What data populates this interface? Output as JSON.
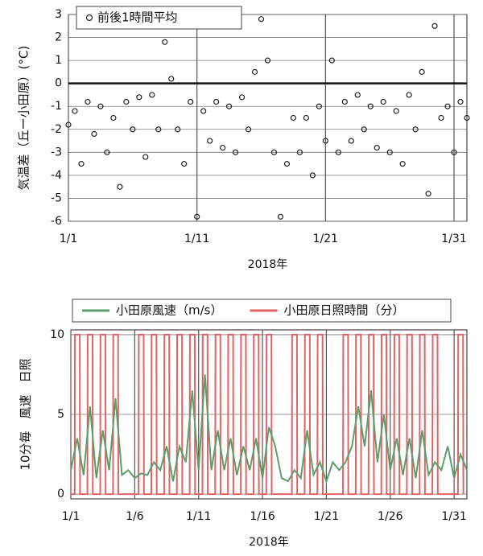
{
  "chart_data": [
    {
      "type": "scatter",
      "ylabel": "気温差（丘ー小田原）(°C)",
      "xlabel": "2018年",
      "xlim": [
        1,
        32
      ],
      "ylim": [
        -6,
        3
      ],
      "xticks": [
        {
          "value": 1,
          "label": "1/1"
        },
        {
          "value": 11,
          "label": "1/11"
        },
        {
          "value": 21,
          "label": "1/21"
        },
        {
          "value": 31,
          "label": "1/31"
        }
      ],
      "yticks": [
        -6,
        -5,
        -4,
        -3,
        -2,
        -1,
        0,
        1,
        2,
        3
      ],
      "grid": true,
      "reference_line": 0,
      "legend": "top-left",
      "series": [
        {
          "name": "前後1時間平均",
          "color": "#222222",
          "x": [
            1,
            1.5,
            2,
            2.5,
            3,
            3.5,
            4,
            4.5,
            5,
            5.5,
            6,
            6.5,
            7,
            7.5,
            8,
            8.5,
            9,
            9.5,
            10,
            10.5,
            11,
            11.5,
            12,
            12.5,
            13,
            13.5,
            14,
            14.5,
            15,
            15.5,
            16,
            16.5,
            17,
            17.5,
            18,
            18.5,
            19,
            19.5,
            20,
            20.5,
            21,
            21.5,
            22,
            22.5,
            23,
            23.5,
            24,
            24.5,
            25,
            25.5,
            26,
            26.5,
            27,
            27.5,
            28,
            28.5,
            29,
            29.5,
            30,
            30.5,
            31,
            31.5,
            32
          ],
          "values": [
            -1.8,
            -1.2,
            -3.5,
            -0.8,
            -2.2,
            -1,
            -3,
            -1.5,
            -4.5,
            -0.8,
            -2,
            -0.6,
            -3.2,
            -0.5,
            -2,
            1.8,
            0.2,
            -2,
            -3.5,
            -0.8,
            -5.8,
            -1.2,
            -2.5,
            -0.8,
            -2.8,
            -1,
            -3,
            -0.6,
            -2,
            0.5,
            2.8,
            1,
            -3,
            -5.8,
            -3.5,
            -1.5,
            -3,
            -1.5,
            -4,
            -1,
            -2.5,
            1,
            -3,
            -0.8,
            -2.5,
            -0.5,
            -2,
            -1,
            -2.8,
            -0.8,
            -3,
            -1.2,
            -3.5,
            -0.5,
            -2,
            0.5,
            -4.8,
            2.5,
            -1.5,
            -1,
            -3,
            -0.8,
            -1.5
          ]
        }
      ]
    },
    {
      "type": "line",
      "ylabel": "10分毎　風速　日照",
      "xlabel": "2018年",
      "xlim": [
        1,
        32
      ],
      "ylim": [
        -0.3,
        10.3
      ],
      "xticks": [
        {
          "value": 1,
          "label": "1/1"
        },
        {
          "value": 6,
          "label": "1/6"
        },
        {
          "value": 11,
          "label": "1/11"
        },
        {
          "value": 16,
          "label": "1/16"
        },
        {
          "value": 21,
          "label": "1/21"
        },
        {
          "value": 26,
          "label": "1/26"
        },
        {
          "value": 31,
          "label": "1/31"
        }
      ],
      "yticks": [
        0,
        5,
        10
      ],
      "grid": true,
      "legend": "top",
      "series": [
        {
          "name": "小田原風速（m/s）",
          "color": "#5c9e6e",
          "x": [
            1,
            1.5,
            2,
            2.5,
            3,
            3.5,
            4,
            4.5,
            5,
            5.5,
            6,
            6.5,
            7,
            7.5,
            8,
            8.5,
            9,
            9.5,
            10,
            10.5,
            11,
            11.5,
            12,
            12.5,
            13,
            13.5,
            14,
            14.5,
            15,
            15.5,
            16,
            16.5,
            17,
            17.5,
            18,
            18.5,
            19,
            19.5,
            20,
            20.5,
            21,
            21.5,
            22,
            22.5,
            23,
            23.5,
            24,
            24.5,
            25,
            25.5,
            26,
            26.5,
            27,
            27.5,
            28,
            28.5,
            29,
            29.5,
            30,
            30.5,
            31,
            31.5,
            32
          ],
          "values": [
            1.5,
            3.5,
            1.2,
            5.5,
            1,
            4,
            1.5,
            6,
            1.2,
            1.5,
            1,
            1.3,
            1.2,
            2,
            1.5,
            3,
            0.8,
            3,
            2,
            6.5,
            1.5,
            7.5,
            1.5,
            4,
            1.5,
            3.5,
            1.2,
            3,
            1.5,
            3.5,
            1,
            4.2,
            3,
            1,
            0.8,
            1.5,
            1,
            4,
            1.2,
            2,
            0.8,
            2,
            1.5,
            2,
            3,
            5.5,
            3,
            6.5,
            2,
            5,
            1.5,
            3.5,
            1.2,
            3.5,
            1,
            4,
            1.2,
            2,
            1.5,
            3,
            1,
            2.5,
            1.5
          ]
        },
        {
          "name": "小田原日照時間（分）",
          "color": "#e06464",
          "x": [
            1,
            1.3,
            1.32,
            1.7,
            1.72,
            2.3,
            2.32,
            2.7,
            2.72,
            3.3,
            3.32,
            3.7,
            3.72,
            4.3,
            4.32,
            4.7,
            4.72,
            6.3,
            6.32,
            6.7,
            6.72,
            7.3,
            7.32,
            7.7,
            7.72,
            8.3,
            8.32,
            8.7,
            8.72,
            9.3,
            9.32,
            9.7,
            9.72,
            10.3,
            10.32,
            10.7,
            10.72,
            11.3,
            11.32,
            11.7,
            11.72,
            12.3,
            12.32,
            12.7,
            12.72,
            13.3,
            13.32,
            13.7,
            13.72,
            14.3,
            14.32,
            14.7,
            14.72,
            15.3,
            15.32,
            15.7,
            15.72,
            16.3,
            16.32,
            16.7,
            16.72,
            18.3,
            18.32,
            18.7,
            18.72,
            19.3,
            19.32,
            19.7,
            19.72,
            20.3,
            20.32,
            20.7,
            20.72,
            22.3,
            22.32,
            22.7,
            22.72,
            23.3,
            23.32,
            23.7,
            23.72,
            24.3,
            24.32,
            24.7,
            24.72,
            25.3,
            25.32,
            25.7,
            25.72,
            26.3,
            26.32,
            26.7,
            26.72,
            27.3,
            27.32,
            27.7,
            27.72,
            28.3,
            28.32,
            28.7,
            28.72,
            29.3,
            29.32,
            29.7,
            29.72,
            31.3,
            31.32,
            31.7,
            31.72
          ],
          "values": [
            0,
            0,
            10,
            10,
            0,
            0,
            10,
            10,
            0,
            0,
            10,
            10,
            0,
            0,
            10,
            10,
            0,
            0,
            10,
            10,
            0,
            0,
            10,
            10,
            0,
            0,
            10,
            10,
            0,
            0,
            10,
            10,
            0,
            0,
            10,
            10,
            0,
            0,
            10,
            10,
            0,
            0,
            10,
            10,
            0,
            0,
            10,
            10,
            0,
            0,
            10,
            10,
            0,
            0,
            10,
            10,
            0,
            0,
            10,
            10,
            0,
            0,
            10,
            10,
            0,
            0,
            10,
            10,
            0,
            0,
            10,
            10,
            0,
            0,
            10,
            10,
            0,
            0,
            10,
            10,
            0,
            0,
            10,
            10,
            0,
            0,
            10,
            10,
            0,
            0,
            10,
            10,
            0,
            0,
            10,
            10,
            0,
            0,
            10,
            10,
            0,
            0,
            10,
            10,
            0,
            0,
            10,
            10,
            0
          ]
        }
      ]
    }
  ]
}
